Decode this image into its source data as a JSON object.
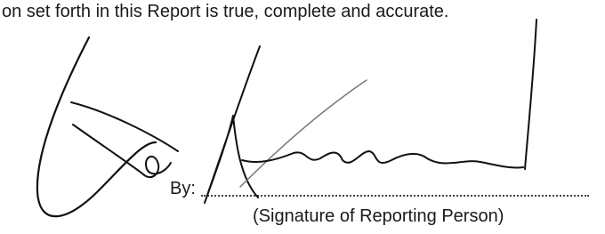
{
  "statement": "on set forth in this Report is true, complete and accurate.",
  "signature_block": {
    "by_label": "By:",
    "caption": "(Signature of Reporting Person)"
  }
}
